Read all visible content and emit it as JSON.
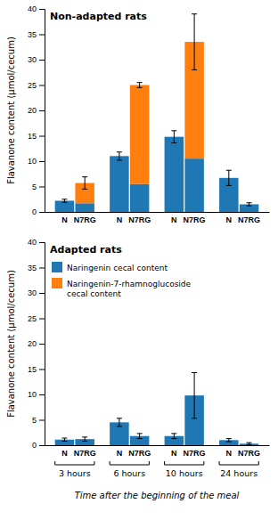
{
  "chart_data": [
    {
      "type": "bar",
      "stacked": true,
      "title": "Non-adapted rats",
      "y_label": "Flavanone content (μmol/cecum)",
      "categories": [
        "N",
        "N7RG",
        "N",
        "N7RG",
        "N",
        "N7RG",
        "N",
        "N7RG"
      ],
      "series": [
        {
          "values": [
            2.2,
            1.7,
            11.0,
            5.5,
            14.8,
            10.5,
            6.7,
            1.5
          ],
          "errors": [
            0.3,
            null,
            0.8,
            null,
            1.2,
            null,
            1.5,
            0.3
          ]
        },
        {
          "values": [
            null,
            4.0,
            null,
            19.5,
            null,
            23.0,
            null,
            0.0
          ],
          "errors": [
            null,
            1.2,
            null,
            0.5,
            null,
            5.5,
            null,
            null
          ]
        }
      ],
      "ylim": [
        0,
        40
      ],
      "yticks": [
        0,
        5,
        10,
        15,
        20,
        25,
        30,
        35,
        40
      ]
    },
    {
      "type": "bar",
      "stacked": true,
      "title": "Adapted rats",
      "y_label": "Flavanone content (μmol/cecum)",
      "x_label": "Time after the beginning of the meal",
      "categories": [
        "N",
        "N7RG",
        "N",
        "N7RG",
        "N",
        "N7RG",
        "N",
        "N7RG"
      ],
      "groups": [
        "3 hours",
        "6 hours",
        "10 hours",
        "24 hours"
      ],
      "legend": "upper left",
      "series": [
        {
          "name": "Naringenin cecal content",
          "values": [
            1.1,
            1.2,
            4.5,
            1.8,
            1.8,
            9.8,
            1.0,
            0.3
          ],
          "errors": [
            0.3,
            0.4,
            0.8,
            0.5,
            0.5,
            4.5,
            0.3,
            0.2
          ]
        },
        {
          "name": "Naringenin-7-rhamnoglucoside\ncecal content",
          "values": [
            null,
            0.0,
            null,
            0.0,
            null,
            0.0,
            null,
            0.0
          ],
          "errors": [
            null,
            null,
            null,
            null,
            null,
            null,
            null,
            null
          ]
        }
      ],
      "ylim": [
        0,
        40
      ],
      "yticks": [
        0,
        5,
        10,
        15,
        20,
        25,
        30,
        35,
        40
      ]
    }
  ]
}
